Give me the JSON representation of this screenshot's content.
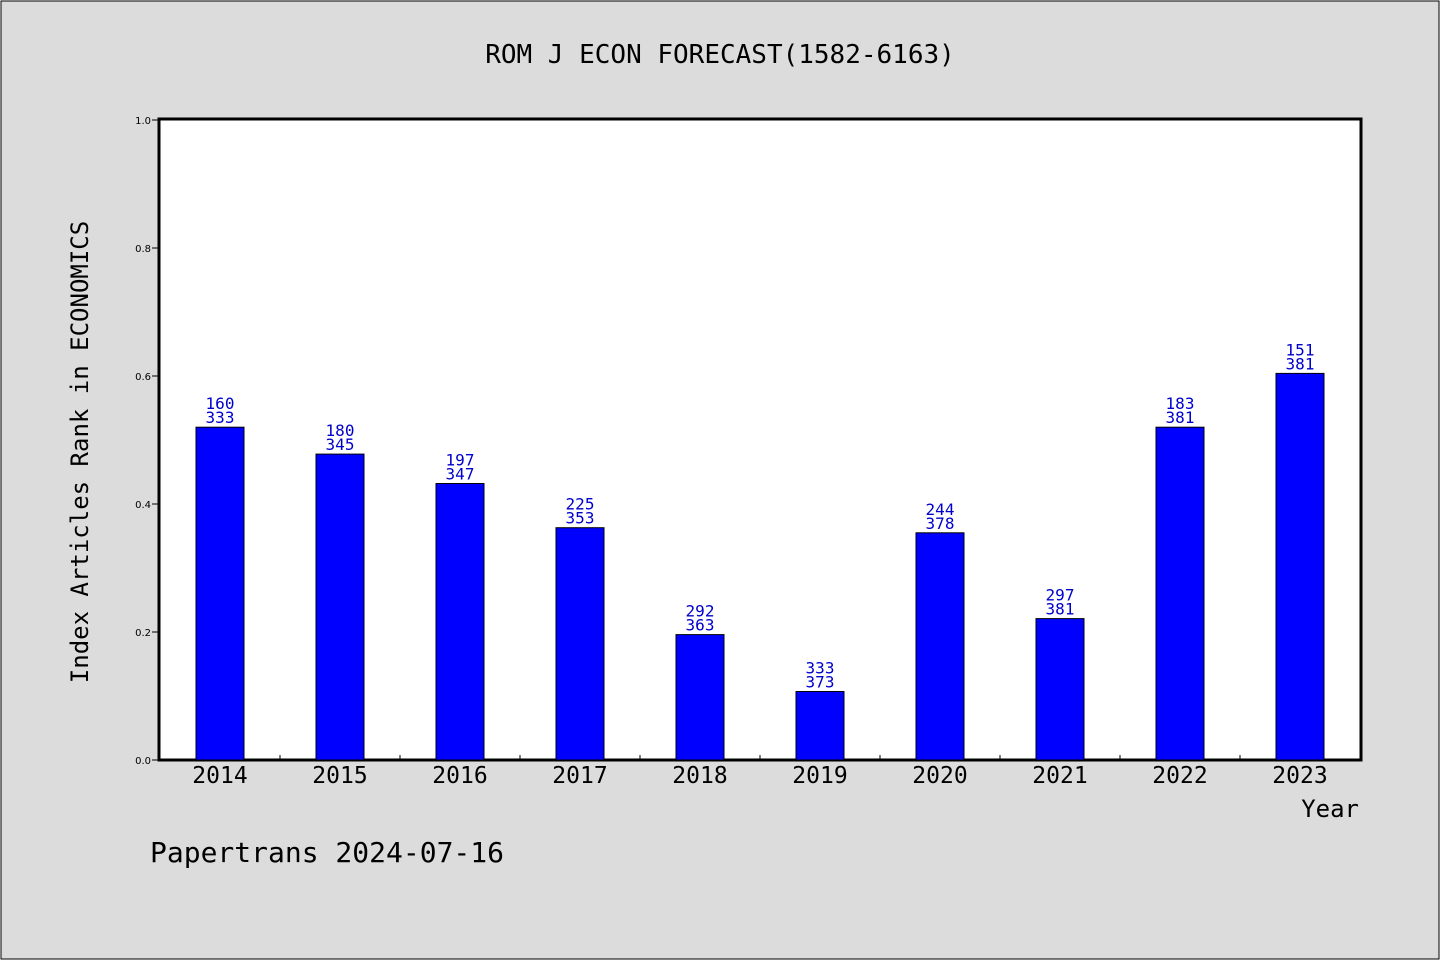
{
  "colors": {
    "background": "#dcdcdc",
    "plot_background": "#ffffff",
    "bar_fill": "#0000ff",
    "bar_label": "#0000cc",
    "axis": "#000000"
  },
  "footer": {
    "text": "Papertrans 2024-07-16"
  },
  "chart_data": {
    "type": "bar",
    "title": "ROM J ECON FORECAST(1582-6163)",
    "xlabel": "Year",
    "ylabel": "Index Articles Rank in ECONOMICS",
    "ylim": [
      0,
      1
    ],
    "yticks": [
      "0.0",
      "0.2",
      "0.4",
      "0.6",
      "0.8",
      "1.0"
    ],
    "grid": false,
    "categories": [
      "2014",
      "2015",
      "2016",
      "2017",
      "2018",
      "2019",
      "2020",
      "2021",
      "2022",
      "2023"
    ],
    "values": [
      0.52,
      0.478,
      0.432,
      0.363,
      0.196,
      0.107,
      0.355,
      0.221,
      0.52,
      0.604
    ],
    "ranks": [
      "160",
      "180",
      "197",
      "225",
      "292",
      "333",
      "244",
      "297",
      "183",
      "151"
    ],
    "totals": [
      "333",
      "345",
      "347",
      "353",
      "363",
      "373",
      "378",
      "381",
      "381",
      "381"
    ]
  }
}
